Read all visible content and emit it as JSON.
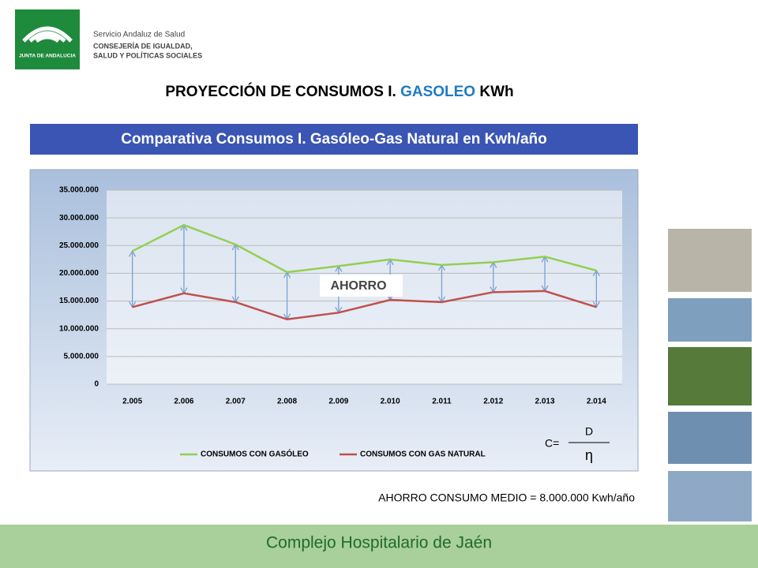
{
  "header": {
    "org_top": "Servicio Andaluz de Salud",
    "org_line1": "CONSEJERÍA DE IGUALDAD,",
    "org_line2": "SALUD Y POLÍTICAS SOCIALES",
    "logo_text": "JUNTA DE ANDALUCIA"
  },
  "title": {
    "part1": "PROYECCIÓN DE CONSUMOS I.",
    "part2": "GASOLEO",
    "part3": "KWh"
  },
  "banner": "Comparativa Consumos I. Gasóleo-Gas Natural en Kwh/año",
  "chart_data": {
    "type": "line",
    "categories": [
      "2.005",
      "2.006",
      "2.007",
      "2.008",
      "2.009",
      "2.010",
      "2.011",
      "2.012",
      "2.013",
      "2.014"
    ],
    "series": [
      {
        "name": "CONSUMOS CON GASÓLEO",
        "color": "#92d050",
        "values": [
          24000000,
          28700000,
          25200000,
          20200000,
          21300000,
          22500000,
          21500000,
          22000000,
          23000000,
          20500000
        ]
      },
      {
        "name": "CONSUMOS CON GAS NATURAL",
        "color": "#c0504d",
        "values": [
          13900000,
          16400000,
          14800000,
          11700000,
          12900000,
          15200000,
          14800000,
          16600000,
          16800000,
          13900000
        ]
      }
    ],
    "ylim": [
      0,
      35000000
    ],
    "yticks": [
      0,
      {
        "value": 5000000,
        "label": "5.000.000"
      },
      {
        "value": 10000000,
        "label": "10.000.000"
      },
      {
        "value": 15000000,
        "label": "15.000.000"
      },
      {
        "value": 20000000,
        "label": "20.000.000"
      },
      {
        "value": 25000000,
        "label": "25.000.000"
      },
      {
        "value": 30000000,
        "label": "30.000.000"
      },
      {
        "value": 35000000,
        "label": "35.000.000"
      }
    ],
    "grid": true,
    "legend": "bottom",
    "annotation": "AHORRO"
  },
  "formula": {
    "lhs": "C=",
    "numerator": "D",
    "denominator": "η"
  },
  "summary": "AHORRO CONSUMO  MEDIO = 8.000.000 Kwh/año",
  "footer": "Complejo Hospitalario de Jaén"
}
